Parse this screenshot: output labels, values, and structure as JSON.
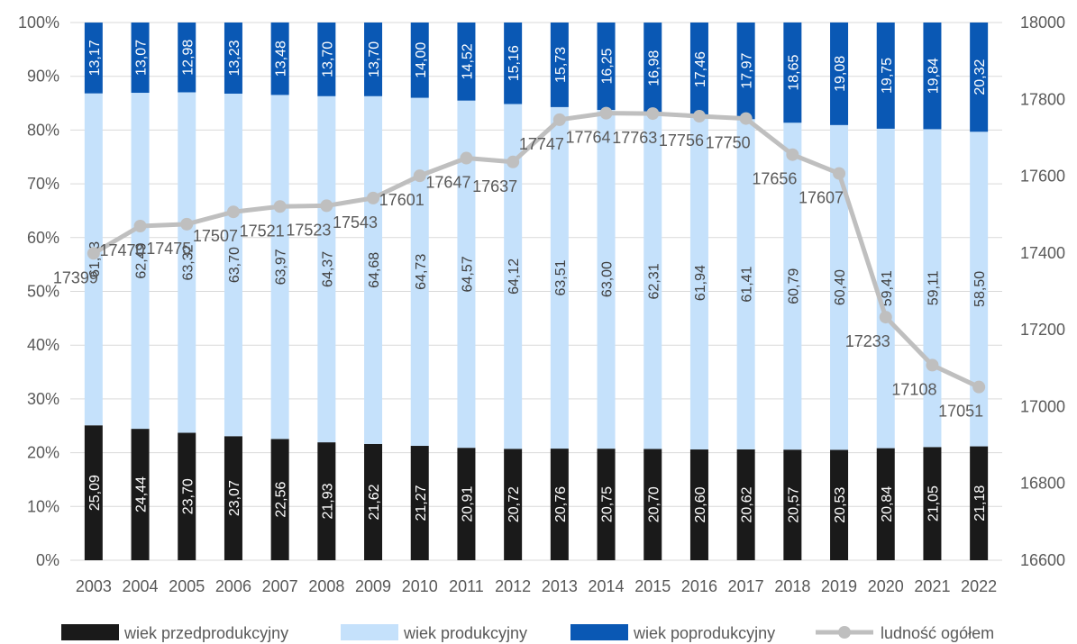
{
  "chart_data": {
    "type": "bar",
    "stacked": true,
    "categories": [
      "2003",
      "2004",
      "2005",
      "2006",
      "2007",
      "2008",
      "2009",
      "2010",
      "2011",
      "2012",
      "2013",
      "2014",
      "2015",
      "2016",
      "2017",
      "2018",
      "2019",
      "2020",
      "2021",
      "2022"
    ],
    "series": [
      {
        "name": "wiek przedprodukcyjny",
        "type": "bar",
        "color": "#1a1a1a",
        "label_color": "#ffffff",
        "values": [
          25.09,
          24.44,
          23.7,
          23.07,
          22.56,
          21.93,
          21.62,
          21.27,
          20.91,
          20.72,
          20.76,
          20.75,
          20.7,
          20.6,
          20.62,
          20.57,
          20.53,
          20.84,
          21.05,
          21.18
        ],
        "labels": [
          "25,09",
          "24,44",
          "23,70",
          "23,07",
          "22,56",
          "21,93",
          "21,62",
          "21,27",
          "20,91",
          "20,72",
          "20,76",
          "20,75",
          "20,70",
          "20,60",
          "20,62",
          "20,57",
          "20,53",
          "20,84",
          "21,05",
          "21,18"
        ]
      },
      {
        "name": "wiek produkcyjny",
        "type": "bar",
        "color": "#c5e1fb",
        "label_color": "#404040",
        "values": [
          61.73,
          62.49,
          63.32,
          63.7,
          63.97,
          64.37,
          64.68,
          64.73,
          64.57,
          64.12,
          63.51,
          63.0,
          62.31,
          61.94,
          61.41,
          60.79,
          60.4,
          59.41,
          59.11,
          58.5
        ],
        "labels": [
          "61,73",
          "62,49",
          "63,32",
          "63,70",
          "63,97",
          "64,37",
          "64,68",
          "64,73",
          "64,57",
          "64,12",
          "63,51",
          "63,00",
          "62,31",
          "61,94",
          "61,41",
          "60,79",
          "60,40",
          "59,41",
          "59,11",
          "58,50"
        ]
      },
      {
        "name": "wiek poprodukcyjny",
        "type": "bar",
        "color": "#0a58b4",
        "label_color": "#ffffff",
        "values": [
          13.17,
          13.07,
          12.98,
          13.23,
          13.48,
          13.7,
          13.7,
          14.0,
          14.52,
          15.16,
          15.73,
          16.25,
          16.98,
          17.46,
          17.97,
          18.65,
          19.08,
          19.75,
          19.84,
          20.32
        ],
        "labels": [
          "13,17",
          "13,07",
          "12,98",
          "13,23",
          "13,48",
          "13,70",
          "13,70",
          "14,00",
          "14,52",
          "15,16",
          "15,73",
          "16,25",
          "16,98",
          "17,46",
          "17,97",
          "18,65",
          "19,08",
          "19,75",
          "19,84",
          "20,32"
        ]
      },
      {
        "name": "ludność ogółem",
        "type": "line",
        "axis": "right",
        "color": "#bfbfbf",
        "values": [
          17399,
          17470,
          17475,
          17507,
          17521,
          17523,
          17543,
          17601,
          17647,
          17637,
          17747,
          17764,
          17763,
          17756,
          17750,
          17656,
          17607,
          17233,
          17108,
          17051
        ],
        "labels": [
          "17399",
          "17470",
          "17475",
          "17507",
          "17521",
          "17523",
          "17543",
          "17601",
          "17647",
          "17637",
          "17747",
          "17764",
          "17763",
          "17756",
          "17750",
          "17656",
          "17607",
          "17233",
          "17108",
          "17051"
        ]
      }
    ],
    "y_left": {
      "min": 0,
      "max": 100,
      "step": 10,
      "ticks": [
        "0%",
        "10%",
        "20%",
        "30%",
        "40%",
        "50%",
        "60%",
        "70%",
        "80%",
        "90%",
        "100%"
      ]
    },
    "y_right": {
      "min": 16600,
      "max": 18000,
      "step": 200,
      "ticks": [
        "16600",
        "16800",
        "17000",
        "17200",
        "17400",
        "17600",
        "17800",
        "18000"
      ]
    },
    "title": "",
    "xlabel": "",
    "ylabel": "",
    "grid": true,
    "legend_position": "bottom"
  }
}
